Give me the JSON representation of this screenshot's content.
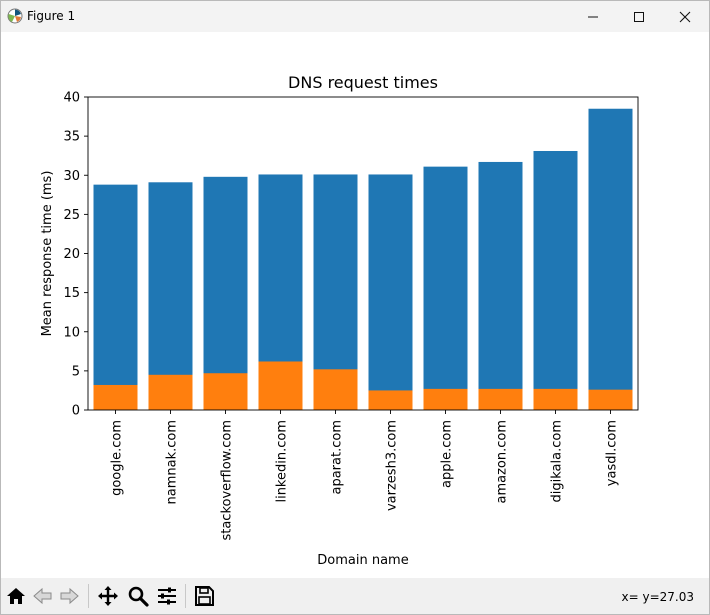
{
  "window": {
    "title": "Figure 1"
  },
  "toolbar": {
    "tools": [
      "home-icon",
      "back-icon",
      "forward-icon",
      "pan-icon",
      "zoom-icon",
      "subplots-icon",
      "save-icon"
    ],
    "coordinates": "x= y=27.03"
  },
  "chart_data": {
    "type": "bar",
    "stacked": "overlay",
    "title": "DNS request times",
    "xlabel": "Domain name",
    "ylabel": "Mean response time (ms)",
    "ylim": [
      0,
      40
    ],
    "yticks": [
      0,
      5,
      10,
      15,
      20,
      25,
      30,
      35,
      40
    ],
    "categories": [
      "google.com",
      "namnak.com",
      "stackoverflow.com",
      "linkedin.com",
      "aparat.com",
      "varzesh3.com",
      "apple.com",
      "amazon.com",
      "digikala.com",
      "yasdl.com"
    ],
    "series": [
      {
        "color": "#1f77b4",
        "values": [
          28.8,
          29.1,
          29.8,
          30.1,
          30.1,
          30.1,
          31.1,
          31.7,
          33.1,
          38.5
        ]
      },
      {
        "color": "#ff7f0e",
        "values": [
          3.2,
          4.5,
          4.7,
          6.2,
          5.2,
          2.5,
          2.7,
          2.7,
          2.7,
          2.6
        ]
      }
    ]
  }
}
